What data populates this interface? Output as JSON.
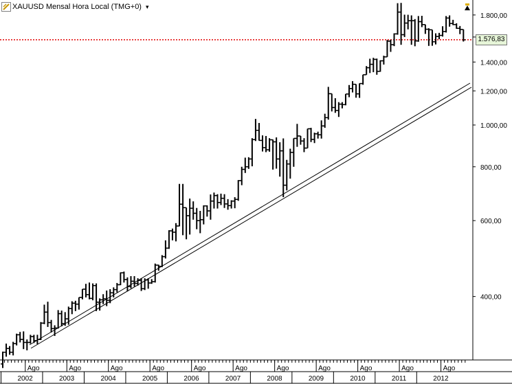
{
  "header": {
    "title": "XAUUSD Mensal Hora Local (TMG+0)",
    "dropdown_glyph": "▾"
  },
  "price_line": {
    "value": 1576.83,
    "label": "1.576,83",
    "color": "#e00000"
  },
  "colors": {
    "background": "#ffffff",
    "bars": "#000000",
    "trendline": "#000000",
    "label_bg": "#e6f5d8"
  },
  "chart_data": {
    "type": "ohlc",
    "symbol": "XAUUSD",
    "period": "monthly",
    "y_scale": "log",
    "ylim": [
      285,
      1950
    ],
    "y_ticks": [
      {
        "value": 1800,
        "label": "1.800,00"
      },
      {
        "value": 1600,
        "label": "1.600,00"
      },
      {
        "value": 1400,
        "label": "1.400,00"
      },
      {
        "value": 1200,
        "label": "1.200,00"
      },
      {
        "value": 1000,
        "label": "1.000,00"
      },
      {
        "value": 800,
        "label": "800,00"
      },
      {
        "value": 600,
        "label": "600,00"
      },
      {
        "value": 400,
        "label": "400,00"
      }
    ],
    "x_month_labels": [
      "Ago",
      "Ago",
      "Ago",
      "Ago",
      "Ago",
      "Ago",
      "Ago",
      "Ago",
      "Ago",
      "Ago",
      "Ago"
    ],
    "x_year_labels": [
      "2002",
      "2003",
      "2004",
      "2005",
      "2006",
      "2007",
      "2008",
      "2009",
      "2010",
      "2011",
      "2012"
    ],
    "first_bar": "2002-01",
    "bars": [
      [
        279,
        298,
        273,
        297
      ],
      [
        297,
        311,
        290,
        303
      ],
      [
        303,
        307,
        293,
        297
      ],
      [
        297,
        314,
        292,
        311
      ],
      [
        311,
        328,
        308,
        326
      ],
      [
        326,
        331,
        313,
        318
      ],
      [
        318,
        332,
        302,
        313
      ],
      [
        313,
        318,
        300,
        313
      ],
      [
        313,
        326,
        311,
        323
      ],
      [
        323,
        326,
        312,
        316
      ],
      [
        316,
        326,
        310,
        318
      ],
      [
        318,
        349,
        317,
        347
      ],
      [
        347,
        383,
        345,
        368
      ],
      [
        368,
        389,
        340,
        348
      ],
      [
        348,
        353,
        330,
        337
      ],
      [
        337,
        343,
        324,
        338
      ],
      [
        338,
        372,
        337,
        365
      ],
      [
        365,
        371,
        341,
        346
      ],
      [
        346,
        368,
        342,
        355
      ],
      [
        355,
        379,
        344,
        375
      ],
      [
        375,
        390,
        364,
        386
      ],
      [
        386,
        391,
        370,
        384
      ],
      [
        384,
        398,
        373,
        398
      ],
      [
        398,
        416,
        394,
        416
      ],
      [
        416,
        428,
        398,
        404
      ],
      [
        404,
        431,
        394,
        396
      ],
      [
        396,
        429,
        392,
        424
      ],
      [
        424,
        429,
        370,
        388
      ],
      [
        388,
        396,
        371,
        393
      ],
      [
        393,
        405,
        384,
        395
      ],
      [
        395,
        413,
        380,
        392
      ],
      [
        392,
        416,
        386,
        408
      ],
      [
        408,
        420,
        398,
        415
      ],
      [
        415,
        430,
        409,
        426
      ],
      [
        426,
        455,
        425,
        454
      ],
      [
        454,
        457,
        431,
        438
      ],
      [
        438,
        443,
        411,
        422
      ],
      [
        422,
        446,
        418,
        434
      ],
      [
        434,
        446,
        422,
        429
      ],
      [
        429,
        441,
        424,
        436
      ],
      [
        436,
        441,
        412,
        417
      ],
      [
        417,
        441,
        414,
        437
      ],
      [
        437,
        441,
        417,
        430
      ],
      [
        430,
        439,
        428,
        433
      ],
      [
        433,
        477,
        431,
        473
      ],
      [
        473,
        474,
        459,
        470
      ],
      [
        470,
        499,
        468,
        495
      ],
      [
        495,
        540,
        490,
        518
      ],
      [
        518,
        570,
        516,
        568
      ],
      [
        568,
        575,
        540,
        564
      ],
      [
        564,
        592,
        537,
        583
      ],
      [
        583,
        730,
        582,
        655
      ],
      [
        655,
        730,
        555,
        643
      ],
      [
        643,
        637,
        543,
        616
      ],
      [
        616,
        675,
        557,
        641
      ],
      [
        641,
        665,
        603,
        624
      ],
      [
        624,
        642,
        573,
        600
      ],
      [
        600,
        632,
        561,
        603
      ],
      [
        603,
        651,
        588,
        649
      ],
      [
        649,
        651,
        613,
        632
      ],
      [
        632,
        690,
        603,
        666
      ],
      [
        666,
        697,
        640,
        686
      ],
      [
        686,
        691,
        640,
        661
      ],
      [
        661,
        693,
        652,
        676
      ],
      [
        676,
        691,
        642,
        656
      ],
      [
        656,
        673,
        636,
        650
      ],
      [
        650,
        669,
        640,
        666
      ],
      [
        666,
        680,
        641,
        672
      ],
      [
        672,
        745,
        667,
        743
      ],
      [
        743,
        800,
        725,
        789
      ],
      [
        789,
        840,
        774,
        800
      ],
      [
        800,
        842,
        791,
        834
      ],
      [
        834,
        932,
        802,
        925
      ],
      [
        925,
        1033,
        918,
        972
      ],
      [
        972,
        1011,
        920,
        921
      ],
      [
        921,
        946,
        868,
        886
      ],
      [
        886,
        943,
        865,
        876
      ],
      [
        876,
        932,
        867,
        924
      ],
      [
        924,
        925,
        788,
        914
      ],
      [
        914,
        936,
        792,
        834
      ],
      [
        834,
        912,
        759,
        871
      ],
      [
        871,
        931,
        680,
        725
      ],
      [
        725,
        830,
        705,
        812
      ],
      [
        812,
        881,
        751,
        864
      ],
      [
        864,
        914,
        800,
        931
      ],
      [
        931,
        1006,
        890,
        943
      ],
      [
        943,
        935,
        900,
        918
      ],
      [
        918,
        932,
        865,
        884
      ],
      [
        884,
        973,
        884,
        980
      ],
      [
        980,
        985,
        913,
        926
      ],
      [
        926,
        960,
        908,
        954
      ],
      [
        954,
        965,
        930,
        949
      ],
      [
        949,
        1025,
        930,
        995
      ],
      [
        995,
        1062,
        985,
        1040
      ],
      [
        1040,
        1226,
        1029,
        1182
      ],
      [
        1182,
        1127,
        1075,
        1098
      ],
      [
        1098,
        1154,
        1067,
        1081
      ],
      [
        1081,
        1130,
        1044,
        1118
      ],
      [
        1118,
        1130,
        1093,
        1115
      ],
      [
        1115,
        1180,
        1111,
        1180
      ],
      [
        1180,
        1238,
        1160,
        1215
      ],
      [
        1215,
        1264,
        1190,
        1243
      ],
      [
        1243,
        1198,
        1157,
        1181
      ],
      [
        1181,
        1249,
        1156,
        1248
      ],
      [
        1248,
        1300,
        1240,
        1308
      ],
      [
        1308,
        1370,
        1314,
        1358
      ],
      [
        1358,
        1425,
        1320,
        1383
      ],
      [
        1383,
        1432,
        1326,
        1420
      ],
      [
        1420,
        1426,
        1308,
        1332
      ],
      [
        1332,
        1413,
        1329,
        1409
      ],
      [
        1409,
        1448,
        1381,
        1439
      ],
      [
        1439,
        1575,
        1468,
        1565
      ],
      [
        1565,
        1577,
        1478,
        1536
      ],
      [
        1536,
        1632,
        1524,
        1627
      ],
      [
        1627,
        1917,
        1620,
        1828
      ],
      [
        1828,
        1920,
        1535,
        1620
      ],
      [
        1620,
        1803,
        1600,
        1724
      ],
      [
        1724,
        1802,
        1667,
        1746
      ],
      [
        1746,
        1796,
        1535,
        1746
      ],
      [
        1746,
        1761,
        1523,
        1567
      ],
      [
        1567,
        1790,
        1560,
        1737
      ],
      [
        1737,
        1792,
        1687,
        1710
      ],
      [
        1710,
        1696,
        1627,
        1668
      ],
      [
        1668,
        1677,
        1526,
        1663
      ],
      [
        1663,
        1640,
        1527,
        1560
      ],
      [
        1560,
        1632,
        1538,
        1605
      ],
      [
        1605,
        1636,
        1582,
        1614
      ],
      [
        1614,
        1695,
        1604,
        1648
      ],
      [
        1648,
        1790,
        1639,
        1771
      ],
      [
        1771,
        1796,
        1691,
        1720
      ],
      [
        1720,
        1754,
        1705,
        1710
      ],
      [
        1710,
        1722,
        1672,
        1676
      ],
      [
        1676,
        1697,
        1625,
        1666
      ],
      [
        1666,
        1650,
        1562,
        1576
      ]
    ]
  }
}
